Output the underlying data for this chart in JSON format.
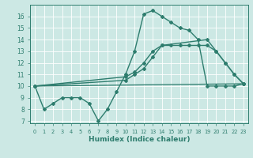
{
  "xlabel": "Humidex (Indice chaleur)",
  "bg_color": "#cce8e4",
  "line_color": "#2e7d6e",
  "grid_color": "#ffffff",
  "xlim": [
    -0.5,
    23.5
  ],
  "ylim": [
    6.8,
    17.0
  ],
  "xticks": [
    0,
    1,
    2,
    3,
    4,
    5,
    6,
    7,
    8,
    9,
    10,
    11,
    12,
    13,
    14,
    15,
    16,
    17,
    18,
    19,
    20,
    21,
    22,
    23
  ],
  "yticks": [
    7,
    8,
    9,
    10,
    11,
    12,
    13,
    14,
    15,
    16
  ],
  "series": [
    {
      "x": [
        0,
        1,
        2,
        3,
        4,
        5,
        6,
        7,
        8,
        9,
        10,
        11,
        12,
        13,
        14,
        15,
        16,
        17,
        18,
        19,
        20,
        21,
        22,
        23
      ],
      "y": [
        10,
        8,
        8.5,
        9,
        9,
        9,
        8.5,
        7,
        8,
        9.5,
        11,
        13,
        16.2,
        16.5,
        16,
        15.5,
        15,
        14.8,
        14,
        10,
        10,
        10,
        10,
        10.2
      ],
      "marker": "D",
      "markersize": 2.0,
      "linewidth": 1.0
    },
    {
      "x": [
        0,
        10,
        11,
        12,
        13,
        14,
        15,
        16,
        17,
        18,
        19,
        20,
        21,
        22,
        23
      ],
      "y": [
        10,
        10.8,
        11.2,
        12,
        13,
        13.5,
        13.5,
        13.5,
        13.5,
        13.5,
        13.5,
        13,
        12,
        11,
        10.2
      ],
      "marker": "D",
      "markersize": 2.0,
      "linewidth": 1.0
    },
    {
      "x": [
        0,
        10,
        11,
        12,
        13,
        14,
        19,
        20,
        21,
        22,
        23
      ],
      "y": [
        10,
        10.5,
        11,
        11.5,
        12.5,
        13.5,
        14,
        13,
        12,
        11,
        10.2
      ],
      "marker": "D",
      "markersize": 2.0,
      "linewidth": 1.0
    },
    {
      "x": [
        0,
        23
      ],
      "y": [
        10,
        10.2
      ],
      "marker": null,
      "markersize": 0,
      "linewidth": 0.9
    }
  ]
}
